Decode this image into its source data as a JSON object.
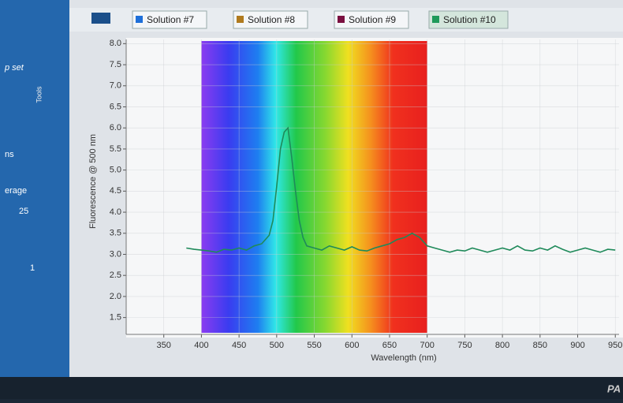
{
  "ui": {
    "sidebar": {
      "items": [
        "p set",
        "ns",
        "erage",
        "25",
        "1"
      ],
      "tools_label": "Tools"
    },
    "tabs": [
      {
        "label": "Solution #7",
        "color": "#1e6fd9"
      },
      {
        "label": "Solution #8",
        "color": "#b07a1e"
      },
      {
        "label": "Solution #9",
        "color": "#7a1040"
      },
      {
        "label": "Solution #10",
        "color": "#1f9a5a"
      }
    ],
    "footer": "PA"
  },
  "chart_data": {
    "type": "line",
    "y_label": "Fluorescence @ 500 nm",
    "x_label": "Wavelength (nm)",
    "xlim": [
      300,
      955
    ],
    "ylim": [
      1.1,
      8.1
    ],
    "xticks": [
      350,
      400,
      450,
      500,
      550,
      600,
      650,
      700,
      750,
      800,
      850,
      900,
      950
    ],
    "yticks": [
      1.5,
      {
        "value": 2,
        "label": "2.0"
      },
      2.5,
      {
        "value": 3,
        "label": "3.0"
      },
      3.5,
      {
        "value": 4,
        "label": "4.0"
      },
      4.5,
      {
        "value": 5,
        "label": "5.0"
      },
      5.5,
      {
        "value": 6,
        "label": "6.0"
      },
      6.5,
      {
        "value": 7,
        "label": "7.0"
      },
      7.5,
      {
        "value": 8,
        "label": "8.0"
      }
    ],
    "grid": true,
    "series": [
      {
        "color": "#1f8a5a",
        "x": [
          380,
          390,
          400,
          410,
          420,
          430,
          440,
          450,
          460,
          470,
          480,
          490,
          495,
          500,
          505,
          510,
          515,
          520,
          525,
          530,
          535,
          540,
          550,
          560,
          570,
          580,
          590,
          600,
          610,
          620,
          630,
          640,
          650,
          660,
          670,
          680,
          690,
          700,
          710,
          720,
          730,
          740,
          750,
          760,
          770,
          780,
          790,
          800,
          810,
          820,
          830,
          840,
          850,
          860,
          870,
          880,
          890,
          900,
          910,
          920,
          930,
          940,
          950
        ],
        "values": [
          3.15,
          3.12,
          3.1,
          3.08,
          3.05,
          3.12,
          3.1,
          3.15,
          3.1,
          3.2,
          3.25,
          3.45,
          3.8,
          4.6,
          5.5,
          5.9,
          6.0,
          5.3,
          4.5,
          3.8,
          3.4,
          3.2,
          3.15,
          3.1,
          3.2,
          3.15,
          3.1,
          3.18,
          3.1,
          3.08,
          3.15,
          3.2,
          3.25,
          3.35,
          3.4,
          3.5,
          3.4,
          3.2,
          3.15,
          3.1,
          3.05,
          3.1,
          3.08,
          3.15,
          3.1,
          3.05,
          3.1,
          3.15,
          3.1,
          3.2,
          3.1,
          3.08,
          3.15,
          3.1,
          3.2,
          3.12,
          3.05,
          3.1,
          3.15,
          3.1,
          3.05,
          3.12,
          3.1
        ]
      }
    ]
  }
}
